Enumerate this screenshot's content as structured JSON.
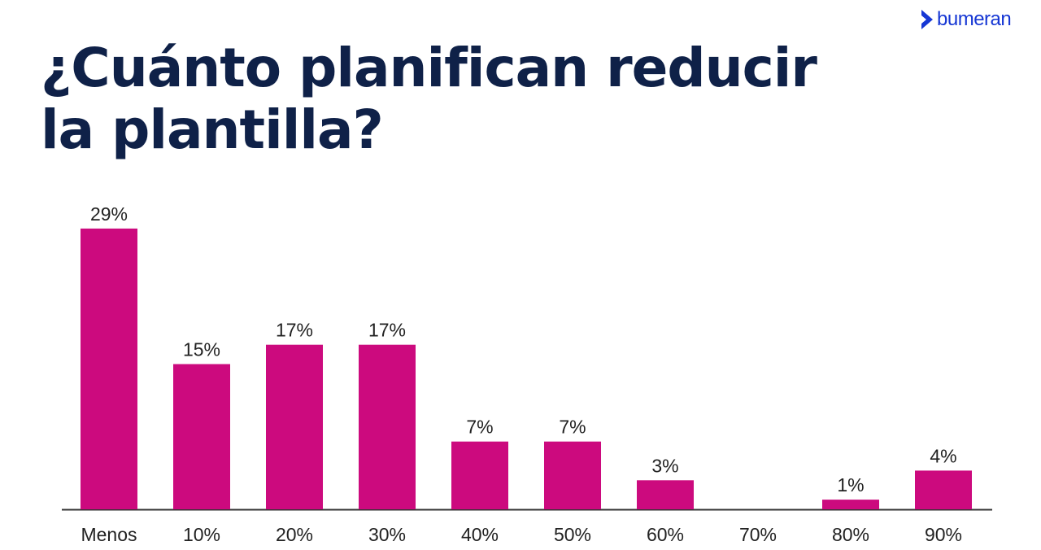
{
  "logo": {
    "text": "bumeran",
    "icon": "chevron-right-icon",
    "color": "#1637d4"
  },
  "title_line1": "¿Cuánto planifican reducir",
  "title_line2": "la plantilla?",
  "chart_data": {
    "type": "bar",
    "title": "¿Cuánto planifican reducir la plantilla?",
    "categories": [
      "Menos",
      "10%",
      "20%",
      "30%",
      "40%",
      "50%",
      "60%",
      "70%",
      "80%",
      "90%"
    ],
    "values": [
      29,
      15,
      17,
      17,
      7,
      7,
      3,
      0,
      1,
      4
    ],
    "value_labels": [
      "29%",
      "15%",
      "17%",
      "17%",
      "7%",
      "7%",
      "3%",
      "",
      "1%",
      "4%"
    ],
    "xlabel": "",
    "ylabel": "",
    "grid": false,
    "bar_color": "#cc0a7e",
    "axis_color": "#333333"
  }
}
